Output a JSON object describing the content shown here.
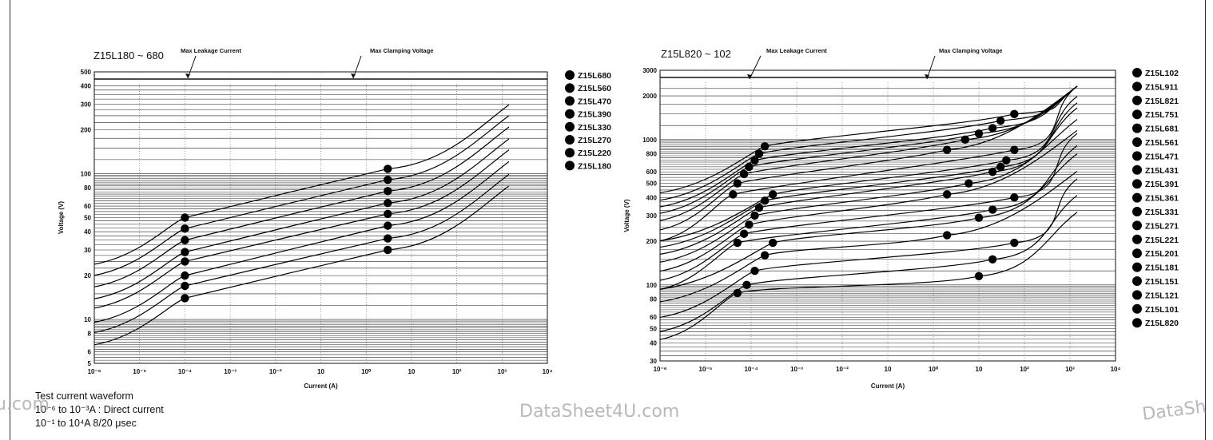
{
  "chart_data": [
    {
      "type": "line",
      "title": "Z15L180 ~ 680",
      "annotations": [
        "Max Leakage Current",
        "Max Clamping Voltage"
      ],
      "xlabel": "Current (A)",
      "ylabel": "Voltage (V)",
      "x_scale": "log",
      "y_scale": "log",
      "xlim": [
        1e-06,
        10000.0
      ],
      "ylim": [
        5,
        500
      ],
      "x_ticks": [
        "10⁻⁶",
        "10⁻⁵",
        "10⁻⁴",
        "10⁻³",
        "10⁻²",
        "10",
        "10⁰",
        "10",
        "10²",
        "10³",
        "10⁴"
      ],
      "y_ticks": [
        "5",
        "6",
        "8",
        "10",
        "20",
        "30",
        "40",
        "50",
        "60",
        "80",
        "100",
        "200",
        "300",
        "400",
        "500"
      ],
      "legend": [
        "Z15L680",
        "Z15L560",
        "Z15L470",
        "Z15L390",
        "Z15L330",
        "Z15L270",
        "Z15L220",
        "Z15L180"
      ],
      "series": [
        {
          "name": "Z15L680",
          "points": [
            [
              0.0001,
              50
            ],
            [
              3,
              108
            ]
          ]
        },
        {
          "name": "Z15L560",
          "points": [
            [
              0.0001,
              42
            ],
            [
              3,
              91
            ]
          ]
        },
        {
          "name": "Z15L470",
          "points": [
            [
              0.0001,
              35
            ],
            [
              3,
              76
            ]
          ]
        },
        {
          "name": "Z15L390",
          "points": [
            [
              0.0001,
              29
            ],
            [
              3,
              63
            ]
          ]
        },
        {
          "name": "Z15L330",
          "points": [
            [
              0.0001,
              25
            ],
            [
              3,
              53
            ]
          ]
        },
        {
          "name": "Z15L270",
          "points": [
            [
              0.0001,
              20
            ],
            [
              3,
              44
            ]
          ]
        },
        {
          "name": "Z15L220",
          "points": [
            [
              0.0001,
              17
            ],
            [
              3,
              36
            ]
          ]
        },
        {
          "name": "Z15L180",
          "points": [
            [
              0.0001,
              14
            ],
            [
              3,
              30
            ]
          ]
        }
      ]
    },
    {
      "type": "line",
      "title": "Z15L820 ~ 102",
      "annotations": [
        "Max Leakage Current",
        "Max Clamping Voltage"
      ],
      "xlabel": "Current (A)",
      "ylabel": "Voltage (V)",
      "x_scale": "log",
      "y_scale": "log",
      "xlim": [
        1e-06,
        10000.0
      ],
      "ylim": [
        30,
        3000
      ],
      "x_ticks": [
        "10⁻⁶",
        "10⁻⁵",
        "10⁻⁴",
        "10⁻³",
        "10⁻²",
        "10",
        "10⁰",
        "10",
        "10²",
        "10³",
        "10⁴"
      ],
      "y_ticks": [
        "30",
        "40",
        "50",
        "60",
        "80",
        "100",
        "200",
        "300",
        "400",
        "500",
        "600",
        "800",
        "1000",
        "2000",
        "3000"
      ],
      "legend": [
        "Z15L102",
        "Z15L911",
        "Z15L821",
        "Z15L751",
        "Z15L681",
        "Z15L561",
        "Z15L471",
        "Z15L431",
        "Z15L391",
        "Z15L361",
        "Z15L331",
        "Z15L271",
        "Z15L221",
        "Z15L201",
        "Z15L181",
        "Z15L151",
        "Z15L121",
        "Z15L101",
        "Z15L820"
      ],
      "series": [
        {
          "name": "Z15L102",
          "points": [
            [
              0.0002,
              900
            ],
            [
              60,
              1500
            ]
          ]
        },
        {
          "name": "Z15L911",
          "points": [
            [
              0.00015,
              800
            ],
            [
              30,
              1350
            ]
          ]
        },
        {
          "name": "Z15L821",
          "points": [
            [
              0.00012,
              720
            ],
            [
              20,
              1200
            ]
          ]
        },
        {
          "name": "Z15L751",
          "points": [
            [
              9e-05,
              650
            ],
            [
              10,
              1100
            ]
          ]
        },
        {
          "name": "Z15L681",
          "points": [
            [
              7e-05,
              580
            ],
            [
              5,
              1000
            ]
          ]
        },
        {
          "name": "Z15L561",
          "points": [
            [
              5e-05,
              500
            ],
            [
              2,
              850
            ]
          ]
        },
        {
          "name": "Z15L471",
          "points": [
            [
              4e-05,
              420
            ],
            [
              60,
              850
            ]
          ]
        },
        {
          "name": "Z15L431",
          "points": [
            [
              0.0003,
              420
            ],
            [
              40,
              720
            ]
          ]
        },
        {
          "name": "Z15L391",
          "points": [
            [
              0.0002,
              380
            ],
            [
              30,
              650
            ]
          ]
        },
        {
          "name": "Z15L361",
          "points": [
            [
              0.00015,
              340
            ],
            [
              20,
              600
            ]
          ]
        },
        {
          "name": "Z15L331",
          "points": [
            [
              0.00012,
              300
            ],
            [
              6,
              500
            ]
          ]
        },
        {
          "name": "Z15L271",
          "points": [
            [
              9e-05,
              260
            ],
            [
              2,
              420
            ]
          ]
        },
        {
          "name": "Z15L221",
          "points": [
            [
              7e-05,
              225
            ],
            [
              60,
              400
            ]
          ]
        },
        {
          "name": "Z15L201",
          "points": [
            [
              5e-05,
              195
            ],
            [
              20,
              330
            ]
          ]
        },
        {
          "name": "Z15L181",
          "points": [
            [
              0.0003,
              195
            ],
            [
              10,
              290
            ]
          ]
        },
        {
          "name": "Z15L151",
          "points": [
            [
              0.0002,
              160
            ],
            [
              2,
              220
            ]
          ]
        },
        {
          "name": "Z15L121",
          "points": [
            [
              0.00012,
              125
            ],
            [
              60,
              195
            ]
          ]
        },
        {
          "name": "Z15L101",
          "points": [
            [
              8e-05,
              100
            ],
            [
              20,
              150
            ]
          ]
        },
        {
          "name": "Z15L820",
          "points": [
            [
              5e-05,
              88
            ],
            [
              10,
              115
            ]
          ]
        }
      ]
    }
  ],
  "notes": {
    "line1": "Test current waveform",
    "line2": "10⁻⁶ to 10⁻³A : Direct current",
    "line3": "10⁻¹ to 10⁴A  8/20 μsec"
  },
  "watermarks": [
    "u.com",
    "DataSheet4U.com",
    "DataSh"
  ]
}
